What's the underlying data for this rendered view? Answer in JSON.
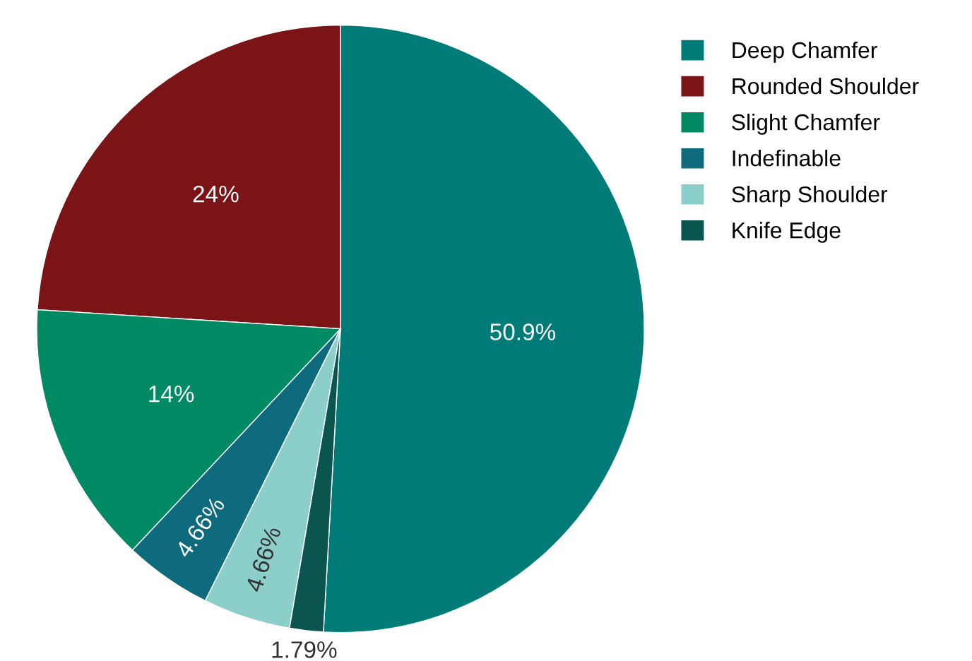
{
  "chart_data": {
    "type": "pie",
    "categories": [
      "Deep Chamfer",
      "Rounded Shoulder",
      "Slight Chamfer",
      "Indefinable",
      "Sharp Shoulder",
      "Knife Edge"
    ],
    "values": [
      50.9,
      24,
      14,
      4.66,
      4.66,
      1.79
    ],
    "colors": [
      "#007b78",
      "#7b1416",
      "#008a63",
      "#0e6a7d",
      "#8ccfca",
      "#0b5550"
    ],
    "value_labels": [
      "50.9%",
      "24%",
      "14%",
      "4.66%",
      "4.66%",
      "1.79%"
    ],
    "legend": "right"
  }
}
